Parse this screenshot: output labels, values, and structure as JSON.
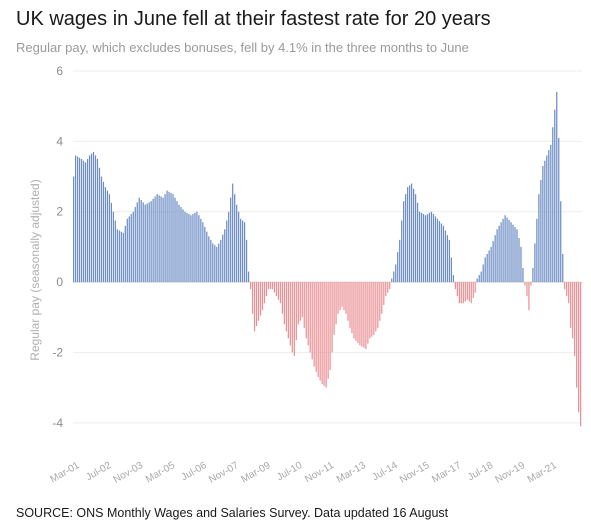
{
  "header": {
    "title": "UK wages in June fell at their fastest rate for 20 years",
    "subtitle": "Regular pay, which excludes bonuses, fell by 4.1% in the three months to June"
  },
  "footer": {
    "source": "SOURCE: ONS Monthly Wages and Salaries Survey. Data updated 16 August"
  },
  "colors": {
    "positive": "#6b8cc4",
    "negative": "#ea8f93",
    "grid": "#eeeeee",
    "zero_line": "#d9d9d9"
  },
  "chart_data": {
    "type": "bar",
    "ylabel": "Regular pay (seasonally adjusted)",
    "xlabel": "",
    "ylim": [
      -5,
      6
    ],
    "yticks": [
      6,
      4,
      2,
      0,
      -2,
      -4
    ],
    "x_tick_labels": [
      "Mar-01",
      "Jul-02",
      "Nov-03",
      "Mar-05",
      "Jul-06",
      "Nov-07",
      "Mar-09",
      "Jul-10",
      "Nov-11",
      "Mar-13",
      "Jul-14",
      "Nov-15",
      "Mar-17",
      "Jul-18",
      "Nov-19",
      "Mar-21"
    ],
    "x_start": "2001-03",
    "x_end": "2022-06",
    "grid": true,
    "anchors": [
      [
        "2001-03",
        3.0
      ],
      [
        "2001-04",
        3.6
      ],
      [
        "2001-07",
        3.5
      ],
      [
        "2001-09",
        3.4
      ],
      [
        "2001-11",
        3.6
      ],
      [
        "2002-01",
        3.7
      ],
      [
        "2002-03",
        3.5
      ],
      [
        "2002-05",
        3.0
      ],
      [
        "2002-07",
        2.7
      ],
      [
        "2002-09",
        2.5
      ],
      [
        "2002-11",
        2.0
      ],
      [
        "2003-01",
        1.5
      ],
      [
        "2003-04",
        1.4
      ],
      [
        "2003-06",
        1.8
      ],
      [
        "2003-09",
        2.0
      ],
      [
        "2003-12",
        2.4
      ],
      [
        "2004-03",
        2.2
      ],
      [
        "2004-06",
        2.3
      ],
      [
        "2004-09",
        2.5
      ],
      [
        "2004-12",
        2.4
      ],
      [
        "2005-02",
        2.6
      ],
      [
        "2005-05",
        2.5
      ],
      [
        "2005-08",
        2.2
      ],
      [
        "2005-11",
        2.0
      ],
      [
        "2006-02",
        1.9
      ],
      [
        "2006-05",
        2.0
      ],
      [
        "2006-08",
        1.7
      ],
      [
        "2006-11",
        1.3
      ],
      [
        "2007-01",
        1.1
      ],
      [
        "2007-03",
        1.0
      ],
      [
        "2007-05",
        1.2
      ],
      [
        "2007-07",
        1.5
      ],
      [
        "2007-09",
        2.0
      ],
      [
        "2007-11",
        2.8
      ],
      [
        "2008-01",
        2.2
      ],
      [
        "2008-03",
        1.8
      ],
      [
        "2008-05",
        1.7
      ],
      [
        "2008-06",
        1.2
      ],
      [
        "2008-07",
        0.3
      ],
      [
        "2008-08",
        -0.2
      ],
      [
        "2008-09",
        -0.9
      ],
      [
        "2008-10",
        -1.4
      ],
      [
        "2008-12",
        -1.1
      ],
      [
        "2009-02",
        -0.8
      ],
      [
        "2009-04",
        -0.4
      ],
      [
        "2009-05",
        -0.2
      ],
      [
        "2009-07",
        -0.2
      ],
      [
        "2009-09",
        -0.4
      ],
      [
        "2009-11",
        -0.6
      ],
      [
        "2010-01",
        -1.2
      ],
      [
        "2010-03",
        -1.6
      ],
      [
        "2010-05",
        -2.0
      ],
      [
        "2010-06",
        -2.1
      ],
      [
        "2010-08",
        -1.2
      ],
      [
        "2010-10",
        -1.0
      ],
      [
        "2010-12",
        -1.6
      ],
      [
        "2011-02",
        -2.0
      ],
      [
        "2011-04",
        -2.4
      ],
      [
        "2011-06",
        -2.7
      ],
      [
        "2011-08",
        -2.9
      ],
      [
        "2011-10",
        -3.0
      ],
      [
        "2011-12",
        -2.5
      ],
      [
        "2012-02",
        -1.5
      ],
      [
        "2012-04",
        -0.9
      ],
      [
        "2012-06",
        -0.7
      ],
      [
        "2012-08",
        -0.9
      ],
      [
        "2012-10",
        -1.3
      ],
      [
        "2012-12",
        -1.6
      ],
      [
        "2013-03",
        -1.8
      ],
      [
        "2013-06",
        -1.9
      ],
      [
        "2013-08",
        -1.6
      ],
      [
        "2013-10",
        -1.5
      ],
      [
        "2013-12",
        -1.3
      ],
      [
        "2014-02",
        -0.9
      ],
      [
        "2014-04",
        -0.4
      ],
      [
        "2014-06",
        -0.2
      ],
      [
        "2014-07",
        0.1
      ],
      [
        "2014-09",
        0.5
      ],
      [
        "2014-11",
        1.2
      ],
      [
        "2015-01",
        2.3
      ],
      [
        "2015-03",
        2.7
      ],
      [
        "2015-05",
        2.8
      ],
      [
        "2015-07",
        2.5
      ],
      [
        "2015-09",
        2.0
      ],
      [
        "2015-12",
        1.9
      ],
      [
        "2016-03",
        2.0
      ],
      [
        "2016-06",
        1.8
      ],
      [
        "2016-09",
        1.6
      ],
      [
        "2016-12",
        1.2
      ],
      [
        "2017-02",
        0.2
      ],
      [
        "2017-03",
        -0.2
      ],
      [
        "2017-05",
        -0.6
      ],
      [
        "2017-07",
        -0.6
      ],
      [
        "2017-09",
        -0.5
      ],
      [
        "2017-11",
        -0.6
      ],
      [
        "2018-01",
        -0.3
      ],
      [
        "2018-02",
        0.1
      ],
      [
        "2018-04",
        0.3
      ],
      [
        "2018-06",
        0.7
      ],
      [
        "2018-09",
        1.0
      ],
      [
        "2018-12",
        1.5
      ],
      [
        "2019-02",
        1.7
      ],
      [
        "2019-04",
        1.9
      ],
      [
        "2019-07",
        1.7
      ],
      [
        "2019-10",
        1.5
      ],
      [
        "2019-12",
        1.0
      ],
      [
        "2020-01",
        0.4
      ],
      [
        "2020-02",
        -0.1
      ],
      [
        "2020-03",
        -0.4
      ],
      [
        "2020-04",
        -0.8
      ],
      [
        "2020-05",
        -0.1
      ],
      [
        "2020-06",
        0.4
      ],
      [
        "2020-07",
        1.1
      ],
      [
        "2020-09",
        2.5
      ],
      [
        "2020-11",
        3.3
      ],
      [
        "2021-01",
        3.6
      ],
      [
        "2021-03",
        3.9
      ],
      [
        "2021-05",
        4.9
      ],
      [
        "2021-06",
        5.4
      ],
      [
        "2021-07",
        4.1
      ],
      [
        "2021-08",
        2.3
      ],
      [
        "2021-09",
        0.8
      ],
      [
        "2021-10",
        -0.2
      ],
      [
        "2021-12",
        -0.6
      ],
      [
        "2022-01",
        -1.3
      ],
      [
        "2022-02",
        -1.6
      ],
      [
        "2022-03",
        -2.1
      ],
      [
        "2022-04",
        -3.0
      ],
      [
        "2022-05",
        -3.7
      ],
      [
        "2022-06",
        -4.1
      ]
    ]
  }
}
